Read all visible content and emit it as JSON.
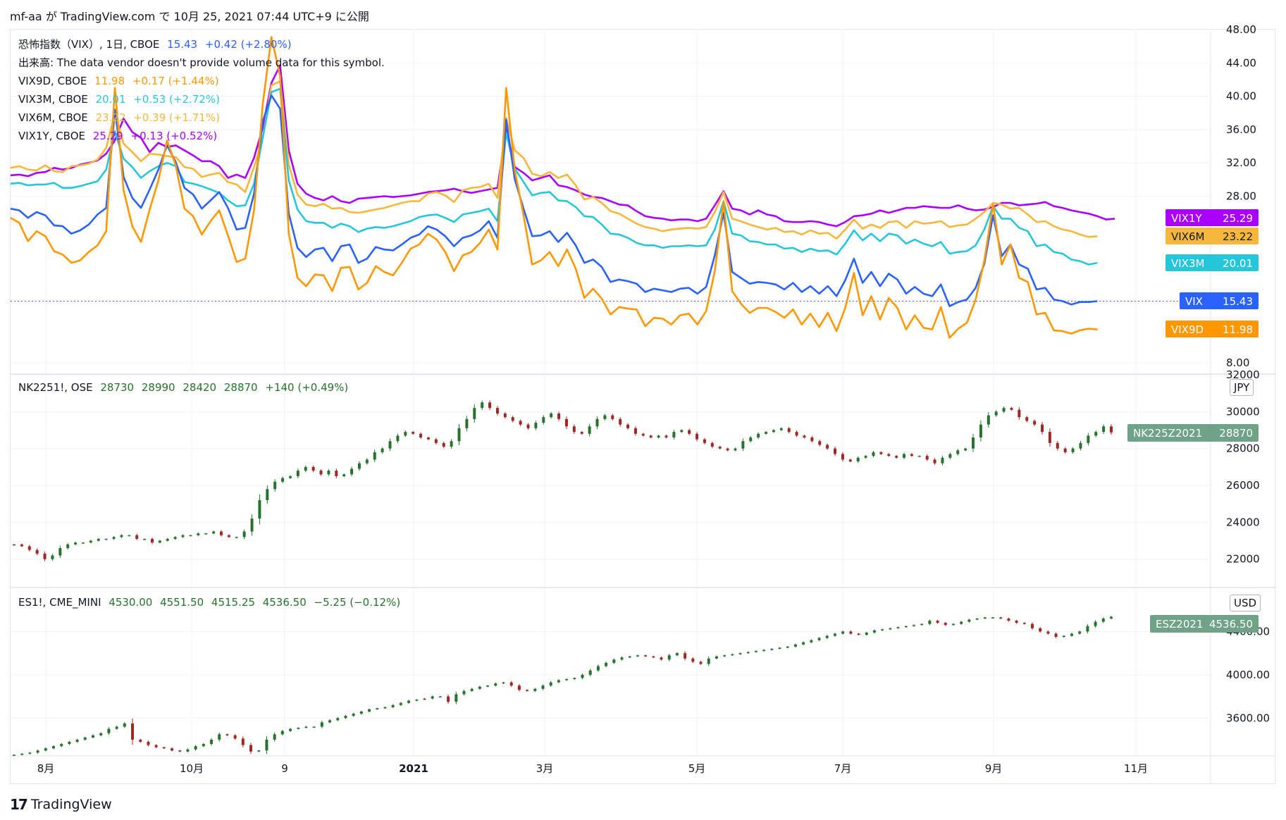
{
  "header": {
    "publish_line": "mf-aa が TradingView.com で 10月 25, 2021 07:44 UTC+9 に公開"
  },
  "footer": {
    "brand": "TradingView",
    "logo_icon": "tradingview-logo-icon"
  },
  "colors": {
    "VIX": "#2962ff",
    "VIX9D": "#ff9800",
    "VIX3M": "#26c6da",
    "VIX6M": "#f6b73c",
    "VIX1Y": "#aa00ff",
    "up": "#26732d",
    "down": "#a02823",
    "nk_tag": "#6fa287"
  },
  "legend": {
    "vix_line": {
      "name": "恐怖指数（VIX）, 1日, CBOE",
      "value": "15.43",
      "change": "+0.42 (+2.80%)"
    },
    "volume_line": "出来高: The data vendor doesn't provide volume data for this symbol.",
    "vix9d": {
      "name": "VIX9D, CBOE",
      "value": "11.98",
      "change": "+0.17 (+1.44%)"
    },
    "vix3m": {
      "name": "VIX3M, CBOE",
      "value": "20.01",
      "change": "+0.53 (+2.72%)"
    },
    "vix6m": {
      "name": "VIX6M, CBOE",
      "value": "23.22",
      "change": "+0.39 (+1.71%)"
    },
    "vix1y": {
      "name": "VIX1Y, CBOE",
      "value": "25.29",
      "change": "+0.13 (+0.52%)"
    },
    "nk": {
      "name": "NK2251!, OSE",
      "open": "28730",
      "high": "28990",
      "low": "28420",
      "close": "28870",
      "change": "+140 (+0.49%)"
    },
    "es": {
      "name": "ES1!, CME_MINI",
      "open": "4530.00",
      "high": "4551.50",
      "low": "4515.25",
      "close": "4536.50",
      "change": "−5.25 (−0.12%)"
    }
  },
  "units": {
    "nk": "JPY",
    "es": "USD"
  },
  "chart_data": [
    {
      "type": "line",
      "title": "恐怖指数（VIX）, 1日, CBOE",
      "ylim": [
        8,
        48
      ],
      "y_ticks": [
        "48.00",
        "44.00",
        "40.00",
        "36.00",
        "32.00",
        "28.00",
        "8.00"
      ],
      "grid": true,
      "series": [
        {
          "name": "VIX1Y",
          "last": "25.29",
          "values": [
            30.5,
            30.6,
            30.4,
            30.8,
            30.9,
            31.4,
            31.2,
            31.4,
            31.8,
            32.0,
            32.3,
            33.1,
            34.7,
            37.3,
            35.7,
            35.0,
            33.3,
            34.4,
            33.9,
            34.1,
            33.5,
            32.9,
            32.2,
            32.2,
            31.6,
            30.2,
            30.6,
            30.2,
            32.6,
            36.2,
            41.6,
            43.7,
            33.5,
            29.5,
            28.3,
            27.8,
            27.5,
            28.0,
            27.4,
            27.2,
            27.7,
            27.8,
            27.9,
            28.0,
            27.9,
            28.0,
            28.1,
            28.3,
            28.5,
            28.6,
            28.7,
            28.9,
            28.6,
            28.4,
            28.6,
            28.8,
            29.0,
            36.0,
            31.5,
            30.8,
            29.9,
            30.2,
            30.5,
            29.3,
            29.1,
            28.7,
            28.2,
            27.9,
            27.8,
            27.4,
            27.0,
            26.9,
            26.2,
            25.6,
            25.4,
            25.3,
            25.1,
            25.2,
            25.2,
            25.0,
            25.3,
            26.9,
            28.6,
            26.5,
            26.3,
            25.8,
            26.3,
            25.8,
            25.6,
            25.0,
            24.9,
            24.9,
            25.0,
            24.9,
            24.6,
            24.4,
            24.9,
            25.6,
            25.7,
            25.9,
            26.3,
            26.0,
            26.3,
            26.6,
            26.6,
            26.8,
            26.7,
            26.6,
            26.6,
            26.9,
            26.5,
            26.3,
            26.4,
            26.7,
            27.2,
            27.2,
            26.9,
            27.0,
            27.1,
            27.3,
            26.8,
            26.6,
            26.3,
            26.1,
            25.9,
            25.6,
            25.2,
            25.3
          ]
        },
        {
          "name": "VIX6M",
          "last": "23.22",
          "values": [
            31.4,
            31.6,
            31.2,
            31.1,
            31.7,
            31.0,
            30.9,
            31.6,
            31.7,
            31.9,
            32.4,
            33.8,
            38.0,
            34.3,
            33.3,
            32.2,
            33.1,
            33.0,
            32.8,
            32.7,
            31.5,
            31.3,
            30.3,
            30.6,
            30.8,
            29.7,
            29.4,
            28.5,
            31.5,
            34.9,
            41.3,
            41.8,
            31.8,
            28.2,
            27.0,
            26.8,
            27.1,
            26.5,
            26.6,
            26.1,
            26.0,
            26.2,
            26.4,
            26.6,
            26.9,
            27.2,
            27.4,
            27.4,
            28.3,
            28.5,
            28.1,
            27.3,
            28.7,
            29.0,
            29.1,
            29.5,
            27.8,
            37.4,
            33.5,
            32.6,
            30.7,
            30.4,
            30.9,
            30.2,
            30.6,
            29.3,
            27.6,
            27.9,
            27.2,
            26.2,
            25.9,
            25.3,
            24.7,
            24.3,
            24.1,
            23.8,
            24.0,
            24.1,
            24.2,
            24.1,
            24.3,
            26.1,
            28.5,
            25.3,
            25.0,
            24.6,
            24.3,
            24.0,
            24.2,
            23.7,
            23.8,
            23.4,
            23.9,
            23.5,
            23.6,
            22.9,
            24.0,
            25.2,
            24.1,
            24.6,
            24.2,
            24.9,
            25.0,
            24.2,
            25.0,
            24.7,
            24.8,
            25.0,
            24.3,
            24.5,
            24.6,
            25.3,
            26.1,
            27.2,
            27.0,
            26.5,
            26.6,
            25.8,
            24.9,
            25.0,
            24.4,
            24.0,
            23.8,
            23.4,
            23.1,
            23.2
          ]
        },
        {
          "name": "VIX3M",
          "last": "20.01",
          "values": [
            29.5,
            29.6,
            29.3,
            29.4,
            29.4,
            29.6,
            29.0,
            29.0,
            29.2,
            29.5,
            29.8,
            31.2,
            35.8,
            32.5,
            31.5,
            30.2,
            31.0,
            31.6,
            32.0,
            31.6,
            29.7,
            29.5,
            29.2,
            28.8,
            28.4,
            27.5,
            26.8,
            26.9,
            29.5,
            35.0,
            40.5,
            40.9,
            29.9,
            26.4,
            25.0,
            24.8,
            24.8,
            24.2,
            24.7,
            24.4,
            23.7,
            24.1,
            24.3,
            24.2,
            24.4,
            24.7,
            25.0,
            25.5,
            25.7,
            25.8,
            25.4,
            24.9,
            25.8,
            26.0,
            26.2,
            26.5,
            25.0,
            35.6,
            31.3,
            29.7,
            28.1,
            28.4,
            28.5,
            27.5,
            27.4,
            26.7,
            25.6,
            25.5,
            24.6,
            23.5,
            23.4,
            23.0,
            22.4,
            22.1,
            22.1,
            21.8,
            22.0,
            22.0,
            22.1,
            22.0,
            22.1,
            24.0,
            27.4,
            23.5,
            23.3,
            22.6,
            22.5,
            22.2,
            22.2,
            21.7,
            21.8,
            21.3,
            21.7,
            21.4,
            21.5,
            21.0,
            22.3,
            23.9,
            22.7,
            23.5,
            22.6,
            23.5,
            23.3,
            22.3,
            22.8,
            22.3,
            22.0,
            22.5,
            21.1,
            21.3,
            21.4,
            22.1,
            24.0,
            26.8,
            25.3,
            25.3,
            24.2,
            23.8,
            22.0,
            22.2,
            21.3,
            21.1,
            20.4,
            20.2,
            19.8,
            20.0
          ]
        },
        {
          "name": "VIX",
          "last": "15.43",
          "values": [
            26.5,
            26.3,
            25.4,
            26.1,
            25.7,
            24.5,
            24.4,
            23.5,
            23.9,
            24.6,
            25.8,
            26.6,
            38.4,
            30.3,
            27.8,
            26.6,
            28.8,
            31.2,
            34.1,
            32.1,
            29.0,
            28.2,
            26.5,
            27.5,
            28.5,
            26.6,
            24.0,
            24.2,
            28.3,
            37.0,
            40.1,
            38.5,
            25.9,
            21.8,
            20.7,
            21.6,
            21.8,
            20.2,
            22.0,
            22.2,
            20.0,
            20.5,
            21.9,
            21.6,
            21.5,
            22.2,
            23.0,
            23.4,
            24.4,
            24.0,
            23.2,
            22.0,
            23.0,
            23.3,
            23.9,
            25.0,
            23.0,
            37.2,
            30.0,
            26.5,
            23.2,
            23.3,
            23.8,
            22.5,
            23.6,
            22.1,
            20.0,
            20.4,
            19.5,
            17.7,
            18.0,
            17.8,
            17.5,
            16.5,
            16.9,
            16.7,
            16.5,
            16.9,
            17.0,
            16.3,
            17.1,
            20.9,
            26.0,
            18.9,
            18.2,
            17.5,
            17.7,
            17.6,
            17.4,
            16.8,
            17.6,
            16.5,
            17.2,
            16.3,
            17.2,
            16.0,
            17.9,
            20.5,
            17.6,
            18.9,
            17.2,
            18.7,
            18.0,
            16.3,
            17.1,
            16.3,
            16.0,
            17.4,
            14.8,
            15.3,
            15.6,
            17.0,
            19.9,
            25.7,
            20.8,
            22.2,
            19.8,
            19.3,
            16.8,
            17.0,
            15.6,
            15.4,
            15.0,
            15.3,
            15.3,
            15.4
          ]
        },
        {
          "name": "VIX9D",
          "last": "11.98",
          "values": [
            25.4,
            24.8,
            22.6,
            23.8,
            23.2,
            21.4,
            21.0,
            20.0,
            20.3,
            21.3,
            22.1,
            23.8,
            41.0,
            28.7,
            24.4,
            22.5,
            26.4,
            29.9,
            34.7,
            31.7,
            26.5,
            25.6,
            23.4,
            25.0,
            26.3,
            23.3,
            20.1,
            20.5,
            26.3,
            39.0,
            47.1,
            42.4,
            23.5,
            18.2,
            17.2,
            18.6,
            18.5,
            16.6,
            19.4,
            19.5,
            16.8,
            17.6,
            19.6,
            18.9,
            18.5,
            20.0,
            21.7,
            22.2,
            23.5,
            22.8,
            21.3,
            19.0,
            20.9,
            21.3,
            22.4,
            24.0,
            21.6,
            41.0,
            31.1,
            25.7,
            19.8,
            20.3,
            21.3,
            19.6,
            21.6,
            19.3,
            15.8,
            16.9,
            15.7,
            13.8,
            14.7,
            14.5,
            14.4,
            12.4,
            13.4,
            13.3,
            12.6,
            13.7,
            13.9,
            12.6,
            14.2,
            19.0,
            27.4,
            16.6,
            15.1,
            14.0,
            14.6,
            14.6,
            14.1,
            13.4,
            14.4,
            12.6,
            13.9,
            12.3,
            14.0,
            11.8,
            14.6,
            18.8,
            13.7,
            16.0,
            13.2,
            15.8,
            14.6,
            12.0,
            13.7,
            12.2,
            12.0,
            14.7,
            11.0,
            12.1,
            12.8,
            15.6,
            20.3,
            27.0,
            19.8,
            22.2,
            18.2,
            17.7,
            13.8,
            14.0,
            11.9,
            11.8,
            11.5,
            11.9,
            12.1,
            12.0
          ]
        }
      ]
    },
    {
      "type": "candlestick",
      "title": "NK2251!, OSE",
      "ylim": [
        20500,
        32000
      ],
      "y_ticks": [
        "32000",
        "30000",
        "28000",
        "26000",
        "24000",
        "22000"
      ],
      "last_label": "NK225Z2021",
      "last": "28870",
      "close": [
        22800,
        22700,
        22500,
        22300,
        22000,
        22200,
        22600,
        22800,
        22900,
        22900,
        23000,
        23100,
        23100,
        23200,
        23300,
        23300,
        23100,
        23100,
        22900,
        23000,
        23100,
        23200,
        23300,
        23300,
        23400,
        23400,
        23500,
        23300,
        23200,
        23200,
        23500,
        24200,
        25200,
        25800,
        26200,
        26400,
        26500,
        26800,
        27000,
        26800,
        26600,
        26800,
        26500,
        26600,
        26900,
        27200,
        27400,
        27800,
        28000,
        28400,
        28700,
        28900,
        28800,
        28600,
        28500,
        28300,
        28100,
        28400,
        29100,
        29600,
        30200,
        30500,
        30200,
        29900,
        29700,
        29500,
        29300,
        29100,
        29400,
        29700,
        29900,
        29600,
        29200,
        28900,
        28800,
        29200,
        29600,
        29800,
        29600,
        29300,
        29100,
        28800,
        28700,
        28600,
        28700,
        28600,
        28900,
        29000,
        28800,
        28500,
        28300,
        28100,
        28000,
        27900,
        28000,
        28400,
        28600,
        28800,
        28900,
        29000,
        29100,
        28900,
        28700,
        28600,
        28400,
        28200,
        28000,
        27700,
        27400,
        27300,
        27500,
        27600,
        27800,
        27700,
        27600,
        27500,
        27700,
        27600,
        27600,
        27400,
        27200,
        27500,
        27700,
        27900,
        28000,
        28600,
        29300,
        29800,
        30000,
        30200,
        30100,
        29700,
        29500,
        29300,
        28900,
        28300,
        28000,
        27800,
        28000,
        28300,
        28700,
        28900,
        29200,
        28870
      ]
    },
    {
      "type": "candlestick",
      "title": "ES1!, CME_MINI",
      "ylim": [
        3250,
        4800
      ],
      "y_ticks": [
        "4400.00",
        "4000.00",
        "3600.00"
      ],
      "last_label": "ESZ2021",
      "last": "4536.50",
      "close": [
        3260,
        3270,
        3280,
        3300,
        3320,
        3340,
        3360,
        3380,
        3400,
        3420,
        3440,
        3460,
        3500,
        3520,
        3550,
        3400,
        3380,
        3350,
        3330,
        3320,
        3300,
        3290,
        3310,
        3340,
        3360,
        3400,
        3450,
        3440,
        3410,
        3350,
        3290,
        3300,
        3400,
        3450,
        3480,
        3500,
        3510,
        3520,
        3520,
        3560,
        3580,
        3600,
        3620,
        3640,
        3660,
        3680,
        3690,
        3700,
        3720,
        3740,
        3760,
        3770,
        3780,
        3800,
        3800,
        3750,
        3820,
        3850,
        3870,
        3890,
        3900,
        3920,
        3930,
        3900,
        3860,
        3850,
        3870,
        3900,
        3930,
        3950,
        3960,
        3970,
        4000,
        4040,
        4080,
        4110,
        4140,
        4160,
        4170,
        4180,
        4170,
        4160,
        4140,
        4180,
        4200,
        4150,
        4120,
        4100,
        4150,
        4170,
        4180,
        4190,
        4200,
        4210,
        4220,
        4230,
        4240,
        4250,
        4260,
        4280,
        4300,
        4320,
        4340,
        4360,
        4380,
        4400,
        4380,
        4370,
        4390,
        4410,
        4420,
        4430,
        4440,
        4450,
        4460,
        4470,
        4500,
        4480,
        4460,
        4470,
        4490,
        4510,
        4520,
        4530,
        4530,
        4520,
        4500,
        4480,
        4470,
        4430,
        4400,
        4380,
        4350,
        4360,
        4380,
        4400,
        4450,
        4490,
        4520,
        4536.5
      ]
    }
  ],
  "x_axis": {
    "labels": [
      "8月",
      "10月",
      "9",
      "2021",
      "3月",
      "5月",
      "7月",
      "9月",
      "11月"
    ]
  }
}
